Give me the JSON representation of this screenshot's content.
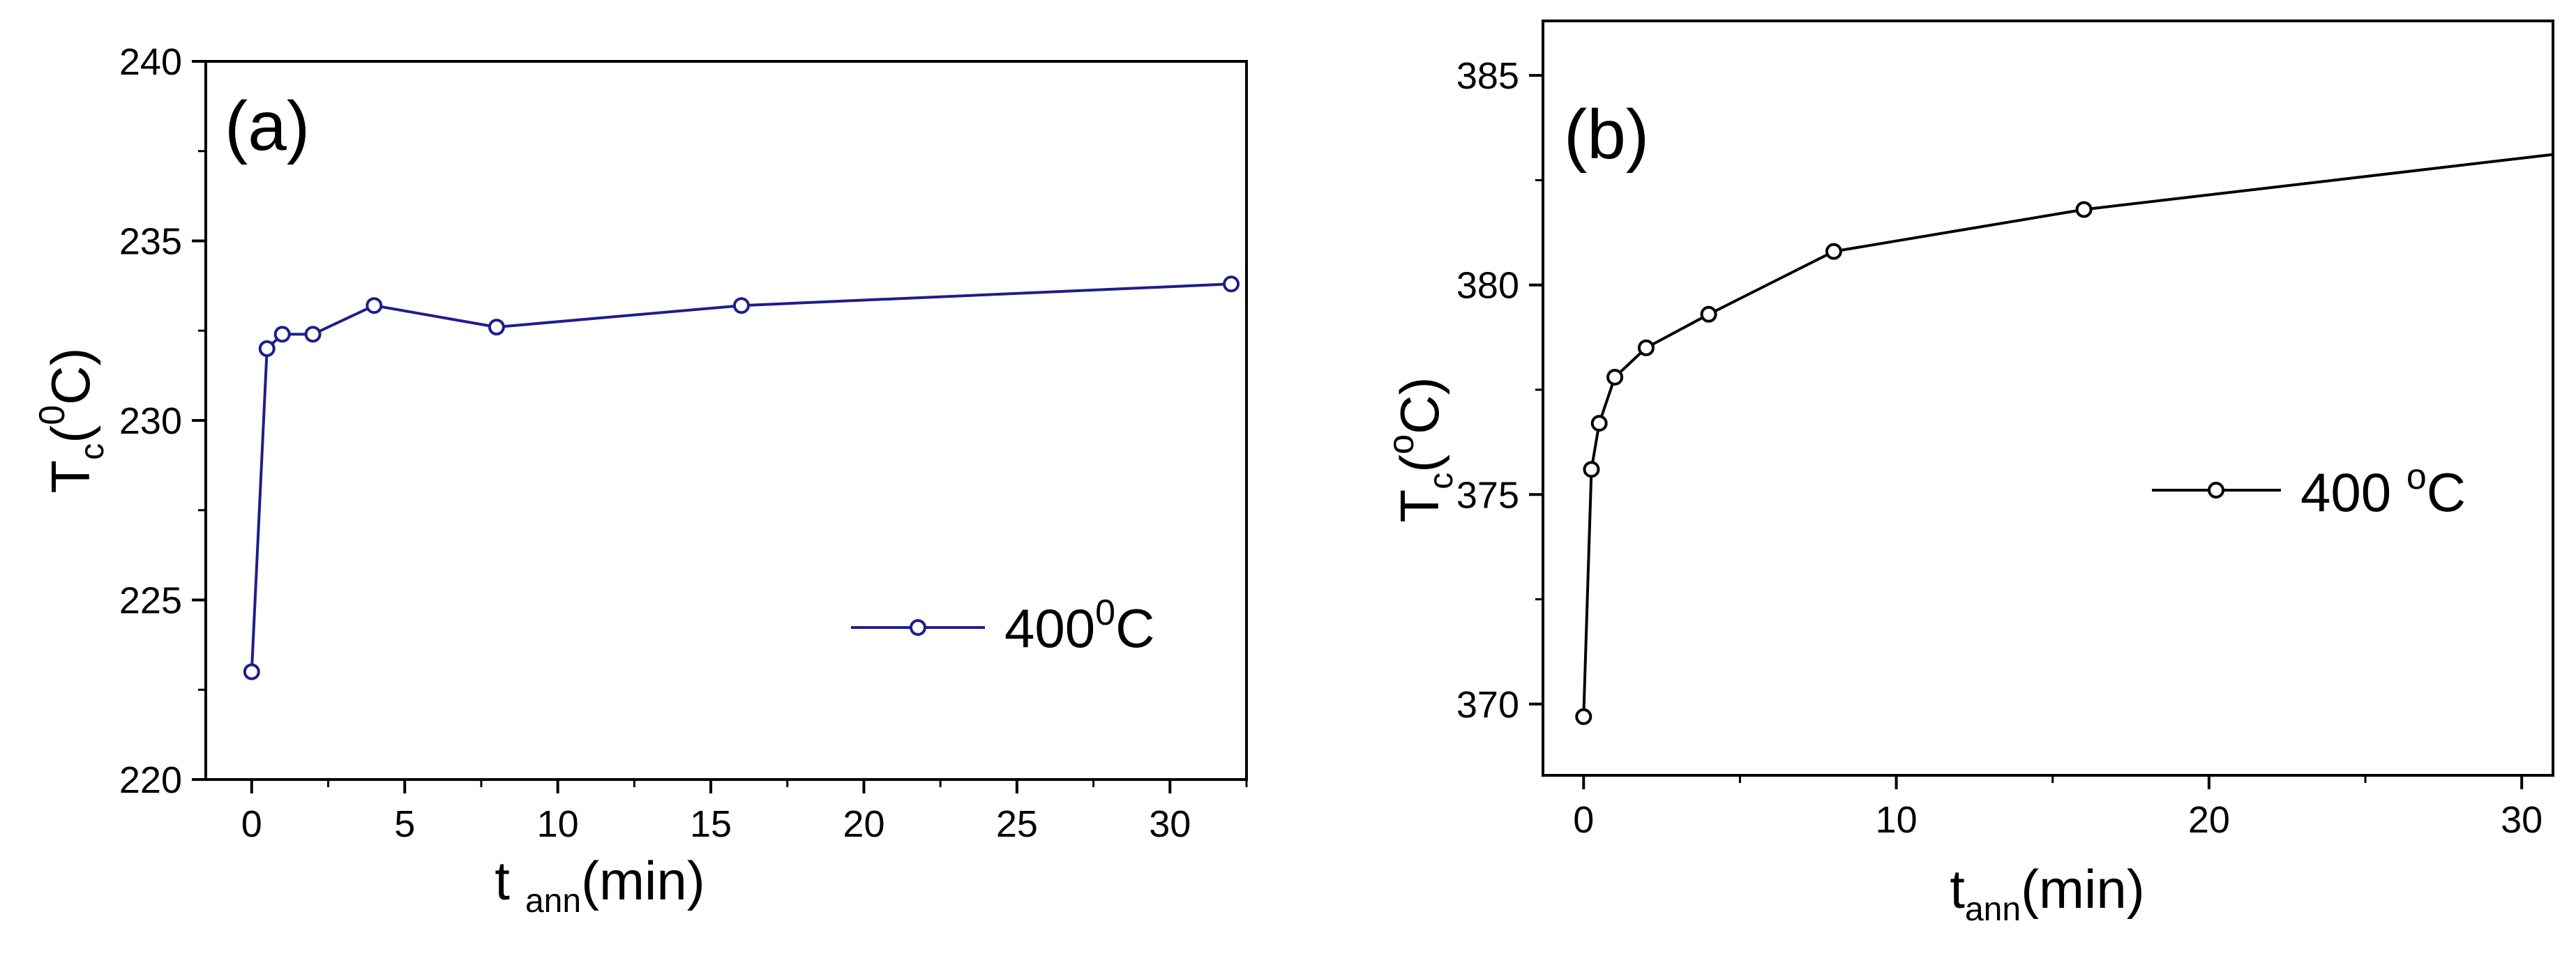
{
  "colors": {
    "series_a": "#1e1e8c",
    "series_b": "#000000",
    "axis": "#000000"
  },
  "chart_data": [
    {
      "type": "line",
      "panel_label": "(a)",
      "xlabel": {
        "main": "t",
        "sub": "ann",
        "rest": "(min)"
      },
      "ylabel": {
        "main": "T",
        "sub": "c",
        "rest": "(",
        "sup": "0",
        "tail": "C)"
      },
      "xlim": [
        -1.5,
        32.5
      ],
      "ylim": [
        220,
        240
      ],
      "xticks": [
        "0",
        "5",
        "10",
        "15",
        "20",
        "25",
        "30"
      ],
      "yticks": [
        "220",
        "225",
        "230",
        "235",
        "240"
      ],
      "grid": false,
      "legend_position": "lower-right",
      "series": [
        {
          "name": "400",
          "name_sup": "0",
          "name_tail": "C",
          "x": [
            0,
            0.5,
            1,
            2,
            4,
            8,
            16,
            32
          ],
          "y": [
            223.0,
            232.0,
            232.4,
            232.4,
            233.2,
            232.6,
            233.2,
            233.8
          ]
        }
      ]
    },
    {
      "type": "line",
      "panel_label": "(b)",
      "xlabel": {
        "main": "t",
        "sub": "ann",
        "rest": "(min)"
      },
      "ylabel": {
        "main": "T",
        "sub": "c",
        "rest": "(",
        "sup": "o",
        "tail": "C)"
      },
      "xlim": [
        -1.3,
        31
      ],
      "ylim": [
        368.3,
        386.3
      ],
      "xticks": [
        "0",
        "10",
        "20",
        "30"
      ],
      "yticks": [
        "370",
        "375",
        "380",
        "385"
      ],
      "grid": false,
      "legend_position": "middle-right",
      "series": [
        {
          "name": "400 ",
          "name_sup": "o",
          "name_tail": "C",
          "x": [
            0,
            0.25,
            0.5,
            1,
            2,
            4,
            8,
            16,
            32
          ],
          "y": [
            369.7,
            375.6,
            376.7,
            377.8,
            378.5,
            379.3,
            380.8,
            381.8,
            383.2
          ]
        }
      ]
    }
  ]
}
